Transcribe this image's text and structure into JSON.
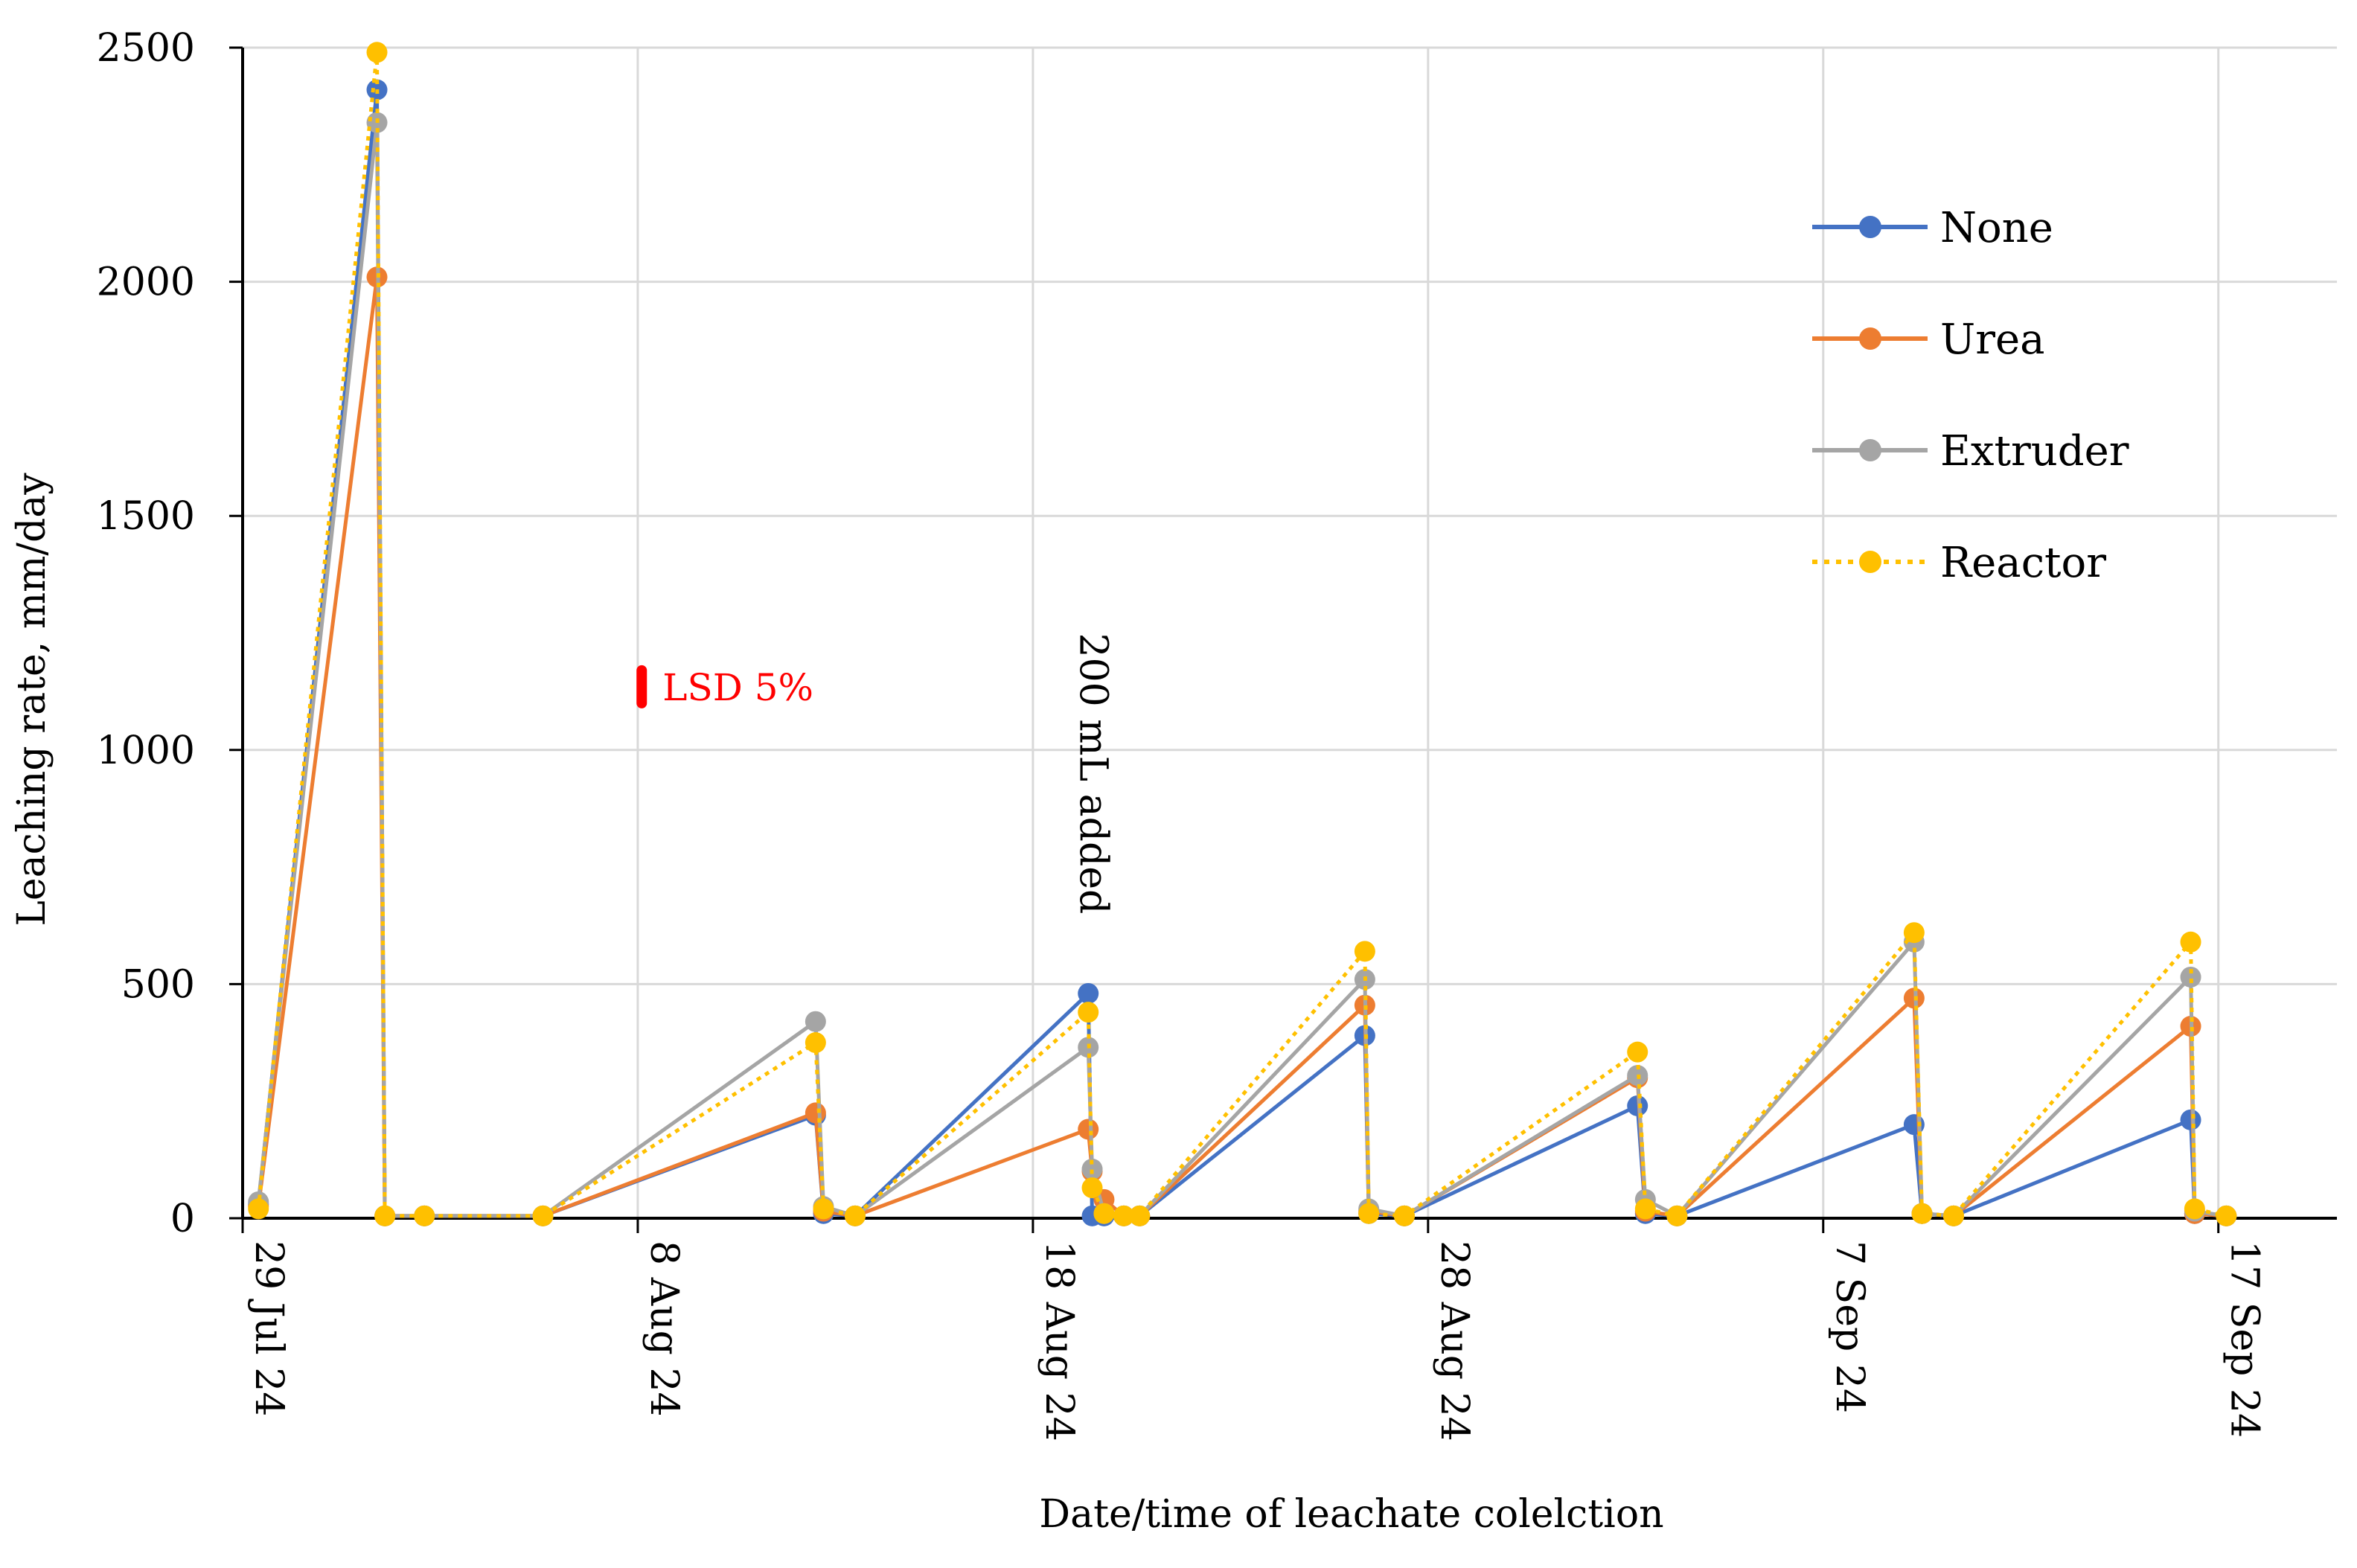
{
  "chart_data": {
    "type": "line",
    "title": "",
    "xlabel": "Date/time of leachate colelction",
    "ylabel": "Leaching rate, mm/day",
    "ylim": [
      0,
      2500
    ],
    "yticks": [
      0,
      500,
      1000,
      1500,
      2000,
      2500
    ],
    "xlim_days": [
      0,
      53
    ],
    "xticks": [
      {
        "day": 0,
        "label": "29 Jul 24"
      },
      {
        "day": 10,
        "label": "8 Aug 24"
      },
      {
        "day": 20,
        "label": "18 Aug 24"
      },
      {
        "day": 30,
        "label": "28 Aug 24"
      },
      {
        "day": 40,
        "label": "7 Sep 24"
      },
      {
        "day": 50,
        "label": "17 Sep 24"
      }
    ],
    "grid": true,
    "legend_position": "top-right",
    "series": [
      {
        "name": "None",
        "color": "#4472C4",
        "dash": "solid",
        "points": [
          [
            0.4,
            30
          ],
          [
            3.4,
            2410
          ],
          [
            3.6,
            5
          ],
          [
            4.6,
            5
          ],
          [
            7.6,
            5
          ],
          [
            14.5,
            220
          ],
          [
            14.7,
            10
          ],
          [
            15.5,
            5
          ],
          [
            21.4,
            480
          ],
          [
            21.5,
            5
          ],
          [
            21.8,
            5
          ],
          [
            22.3,
            5
          ],
          [
            22.7,
            5
          ],
          [
            28.4,
            390
          ],
          [
            28.5,
            10
          ],
          [
            29.4,
            5
          ],
          [
            35.3,
            240
          ],
          [
            35.5,
            10
          ],
          [
            36.3,
            5
          ],
          [
            42.3,
            200
          ],
          [
            42.5,
            10
          ],
          [
            43.3,
            5
          ],
          [
            49.3,
            210
          ],
          [
            49.4,
            10
          ],
          [
            50.2,
            5
          ]
        ]
      },
      {
        "name": "Urea",
        "color": "#ED7D31",
        "dash": "solid",
        "points": [
          [
            0.4,
            25
          ],
          [
            3.4,
            2010
          ],
          [
            3.6,
            5
          ],
          [
            4.6,
            5
          ],
          [
            7.6,
            5
          ],
          [
            14.5,
            225
          ],
          [
            14.7,
            15
          ],
          [
            15.5,
            5
          ],
          [
            21.4,
            190
          ],
          [
            21.5,
            100
          ],
          [
            21.8,
            40
          ],
          [
            22.3,
            5
          ],
          [
            22.7,
            5
          ],
          [
            28.4,
            455
          ],
          [
            28.5,
            15
          ],
          [
            29.4,
            5
          ],
          [
            35.3,
            300
          ],
          [
            35.5,
            15
          ],
          [
            36.3,
            5
          ],
          [
            42.3,
            470
          ],
          [
            42.5,
            10
          ],
          [
            43.3,
            5
          ],
          [
            49.3,
            410
          ],
          [
            49.4,
            10
          ],
          [
            50.2,
            5
          ]
        ]
      },
      {
        "name": "Extruder",
        "color": "#A5A5A5",
        "dash": "solid",
        "points": [
          [
            0.4,
            35
          ],
          [
            3.4,
            2340
          ],
          [
            3.6,
            5
          ],
          [
            4.6,
            5
          ],
          [
            7.6,
            5
          ],
          [
            14.5,
            420
          ],
          [
            14.7,
            25
          ],
          [
            15.5,
            5
          ],
          [
            21.4,
            365
          ],
          [
            21.5,
            105
          ],
          [
            21.8,
            10
          ],
          [
            22.3,
            5
          ],
          [
            22.7,
            5
          ],
          [
            28.4,
            510
          ],
          [
            28.5,
            20
          ],
          [
            29.4,
            5
          ],
          [
            35.3,
            305
          ],
          [
            35.5,
            40
          ],
          [
            36.3,
            5
          ],
          [
            42.3,
            590
          ],
          [
            42.5,
            10
          ],
          [
            43.3,
            5
          ],
          [
            49.3,
            515
          ],
          [
            49.4,
            15
          ],
          [
            50.2,
            5
          ]
        ]
      },
      {
        "name": "Reactor",
        "color": "#FFC000",
        "dash": "dotted",
        "points": [
          [
            0.4,
            20
          ],
          [
            3.4,
            2490
          ],
          [
            3.6,
            5
          ],
          [
            4.6,
            5
          ],
          [
            7.6,
            5
          ],
          [
            14.5,
            375
          ],
          [
            14.7,
            20
          ],
          [
            15.5,
            5
          ],
          [
            21.4,
            440
          ],
          [
            21.5,
            65
          ],
          [
            21.8,
            10
          ],
          [
            22.3,
            5
          ],
          [
            22.7,
            5
          ],
          [
            28.4,
            570
          ],
          [
            28.5,
            10
          ],
          [
            29.4,
            5
          ],
          [
            35.3,
            355
          ],
          [
            35.5,
            20
          ],
          [
            36.3,
            5
          ],
          [
            42.3,
            610
          ],
          [
            42.5,
            10
          ],
          [
            43.3,
            5
          ],
          [
            49.3,
            590
          ],
          [
            49.4,
            20
          ],
          [
            50.2,
            5
          ]
        ]
      }
    ],
    "annotations": [
      {
        "text": "LSD 5%",
        "color": "#FF0000",
        "x_day": 10.1,
        "y_from": 1100,
        "y_to": 1170
      },
      {
        "text": "200 mL added",
        "color": "#000000",
        "x_day": 21.2,
        "y_from": 1250,
        "y_to": 640
      }
    ]
  }
}
